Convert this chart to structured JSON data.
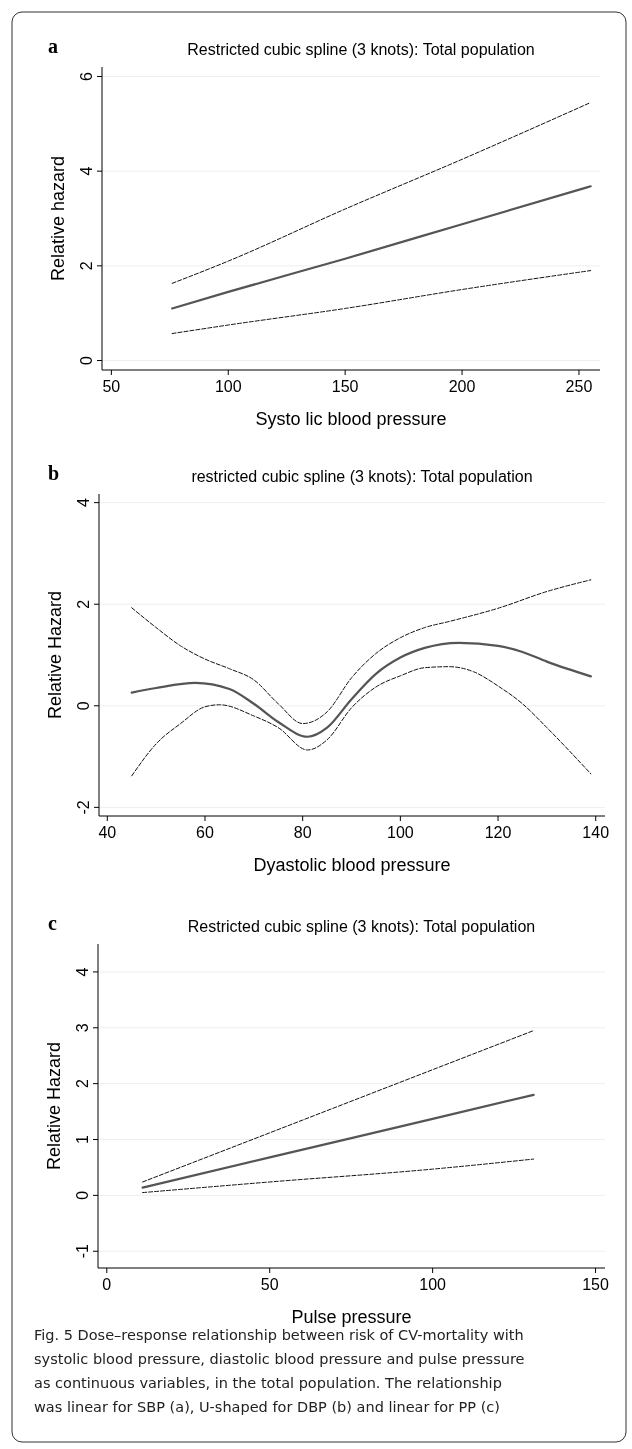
{
  "chart_data": [
    {
      "type": "line",
      "title": "Restricted cubic spline (3 knots): Total population",
      "xlabel": "Systo lic blood pressure",
      "ylabel": "Relative hazard",
      "annotations": [
        "a"
      ],
      "xlim": [
        46,
        259
      ],
      "ylim": [
        -0.2,
        6.2
      ],
      "xticks": [
        50,
        100,
        150,
        200,
        250
      ],
      "yticks": [
        0,
        2,
        4,
        6
      ],
      "grid": "y",
      "series": [
        {
          "color": "#555555",
          "line_style": "solid",
          "x": [
            76,
            100,
            150,
            200,
            255
          ],
          "values": [
            1.1,
            1.45,
            2.15,
            2.88,
            3.68
          ]
        },
        {
          "color": "#111111",
          "line_style": "dashed",
          "x": [
            76,
            100,
            150,
            200,
            255
          ],
          "values": [
            1.63,
            2.1,
            3.2,
            4.25,
            5.45
          ]
        },
        {
          "color": "#111111",
          "line_style": "dashed",
          "x": [
            76,
            100,
            150,
            200,
            255
          ],
          "values": [
            0.57,
            0.75,
            1.1,
            1.5,
            1.9
          ]
        }
      ]
    },
    {
      "type": "line",
      "title": "restricted cubic spline (3 knots): Total population",
      "xlabel": "Dyastolic blood pressure",
      "ylabel": "Relative Hazard",
      "annotations": [
        "b"
      ],
      "xlim": [
        38.3,
        141.9
      ],
      "ylim": [
        -2.17,
        4.17
      ],
      "xticks": [
        40,
        60,
        80,
        100,
        120,
        140
      ],
      "yticks": [
        -2,
        0,
        2,
        4
      ],
      "grid": "y",
      "series": [
        {
          "color": "#555555",
          "line_style": "solid",
          "x": [
            45,
            50,
            58,
            65,
            70,
            75,
            81,
            85,
            90,
            95,
            100,
            105,
            112,
            120,
            125,
            130,
            139
          ],
          "values": [
            0.26,
            0.35,
            0.45,
            0.33,
            0.04,
            -0.32,
            -0.61,
            -0.43,
            0.13,
            0.63,
            0.95,
            1.14,
            1.24,
            1.18,
            1.06,
            0.87,
            0.58
          ]
        },
        {
          "color": "#111111",
          "line_style": "dashed",
          "x": [
            45,
            50,
            55,
            60,
            65,
            70,
            75,
            80,
            85,
            90,
            95,
            100,
            105,
            110,
            120,
            130,
            139
          ],
          "values": [
            1.93,
            1.54,
            1.18,
            0.92,
            0.73,
            0.51,
            0.04,
            -0.35,
            -0.12,
            0.55,
            1.03,
            1.34,
            1.54,
            1.66,
            1.92,
            2.25,
            2.48
          ]
        },
        {
          "color": "#111111",
          "line_style": "dashed",
          "x": [
            45,
            50,
            55,
            60,
            63,
            70,
            75,
            81,
            85,
            90,
            95,
            100,
            105,
            110,
            115,
            120,
            125,
            130,
            139
          ],
          "values": [
            -1.38,
            -0.75,
            -0.35,
            -0.02,
            0.02,
            -0.2,
            -0.43,
            -0.87,
            -0.67,
            -0.04,
            0.37,
            0.59,
            0.75,
            0.77,
            0.67,
            0.39,
            0.04,
            -0.43,
            -1.34
          ]
        }
      ]
    },
    {
      "type": "line",
      "title": "Restricted cubic spline (3 knots): Total population",
      "xlabel": "Pulse pressure",
      "ylabel": "Relative Hazard",
      "annotations": [
        "c",
        "Fig. 5  Dose–response relationship between risk of CV-mortality with systolic blood pressure, diastolic blood pressure and pulse pressure as continuous variables, in the total population. The relationship was linear for SBP (a), U-shaped for DBP (b) and linear for PP (c)"
      ],
      "xlim": [
        -2.7,
        152.9
      ],
      "ylim": [
        -1.3,
        4.5
      ],
      "xticks": [
        0,
        50,
        100,
        150
      ],
      "yticks": [
        -1,
        0,
        1,
        2,
        3,
        4
      ],
      "grid": "y",
      "series": [
        {
          "color": "#555555",
          "line_style": "solid",
          "x": [
            11,
            50,
            100,
            131
          ],
          "values": [
            0.14,
            0.68,
            1.37,
            1.8
          ]
        },
        {
          "color": "#111111",
          "line_style": "dashed",
          "x": [
            11,
            50,
            100,
            131
          ],
          "values": [
            0.24,
            1.12,
            2.25,
            2.95
          ]
        },
        {
          "color": "#111111",
          "line_style": "dashed",
          "x": [
            11,
            50,
            100,
            131
          ],
          "values": [
            0.05,
            0.24,
            0.47,
            0.65
          ]
        }
      ]
    }
  ]
}
